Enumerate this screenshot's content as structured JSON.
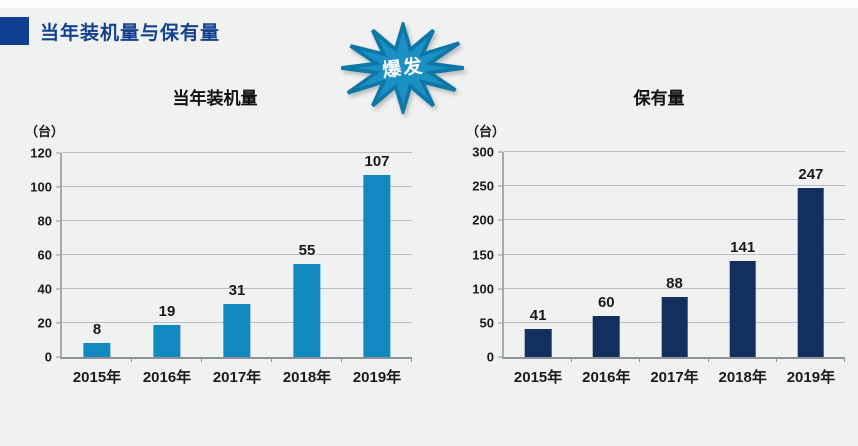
{
  "header": {
    "title": "当年装机量与保有量"
  },
  "burst": {
    "label": "爆发"
  },
  "colors": {
    "bg": "#f0f1f1",
    "header_blue": "#0e3f90",
    "header_text": "#14428d",
    "installed_bar": "#1089be",
    "holdings_bar": "#132f5e",
    "burst_fill": "#1b90c2",
    "burst_stroke": "#0f76a8",
    "gridline": "#bcbec3"
  },
  "chart_data": [
    {
      "type": "bar",
      "title": "当年装机量",
      "ylabel": "（台）",
      "categories": [
        "2015年",
        "2016年",
        "2017年",
        "2018年",
        "2019年"
      ],
      "values": [
        8,
        19,
        31,
        55,
        107
      ],
      "ylim": [
        0,
        120
      ],
      "ytick_step": 20,
      "grid": true,
      "legend": "none",
      "bar_color": "#1089be"
    },
    {
      "type": "bar",
      "title": "保有量",
      "ylabel": "（台）",
      "categories": [
        "2015年",
        "2016年",
        "2017年",
        "2018年",
        "2019年"
      ],
      "values": [
        41,
        60,
        88,
        141,
        247
      ],
      "ylim": [
        0,
        300
      ],
      "ytick_step": 50,
      "grid": true,
      "legend": "none",
      "bar_color": "#132f5e"
    }
  ]
}
